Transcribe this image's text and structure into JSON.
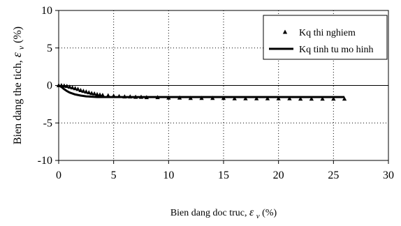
{
  "chart_data": {
    "type": "scatter",
    "xlabel_main": "Bien dang doc truc, ",
    "xlabel_symbol": "ε",
    "xlabel_sub": "v",
    "xlabel_unit": " (%)",
    "ylabel_main": "Bien dang the tich, ",
    "ylabel_symbol": "ε",
    "ylabel_sub": "v",
    "ylabel_unit": " (%)",
    "xlim": [
      0,
      30
    ],
    "ylim": [
      -10,
      10
    ],
    "xticks": [
      "0",
      "5",
      "10",
      "15",
      "20",
      "25",
      "30"
    ],
    "yticks": [
      "-10",
      "-5",
      "0",
      "5",
      "10"
    ],
    "grid": "dotted",
    "legend_position": "top-right",
    "series": [
      {
        "name": "Kq thi nghiem",
        "marker": "triangle",
        "x": [
          0.0,
          0.25,
          0.5,
          0.75,
          1.0,
          1.25,
          1.5,
          1.75,
          2.0,
          2.25,
          2.5,
          2.75,
          3.0,
          3.25,
          3.5,
          3.75,
          4.0,
          4.5,
          5.0,
          5.5,
          6.0,
          6.5,
          7.0,
          7.5,
          8.0,
          9.0,
          10.0,
          11.0,
          12.0,
          13.0,
          14.0,
          15.0,
          16.0,
          17.0,
          18.0,
          19.0,
          20.0,
          21.0,
          22.0,
          23.0,
          24.0,
          25.0,
          26.0
        ],
        "y": [
          0.0,
          0.0,
          -0.05,
          -0.1,
          -0.2,
          -0.3,
          -0.4,
          -0.5,
          -0.65,
          -0.75,
          -0.85,
          -0.95,
          -1.05,
          -1.1,
          -1.2,
          -1.25,
          -1.3,
          -1.35,
          -1.4,
          -1.45,
          -1.5,
          -1.5,
          -1.55,
          -1.55,
          -1.6,
          -1.6,
          -1.65,
          -1.65,
          -1.7,
          -1.7,
          -1.7,
          -1.7,
          -1.75,
          -1.75,
          -1.75,
          -1.75,
          -1.75,
          -1.75,
          -1.8,
          -1.8,
          -1.8,
          -1.8,
          -1.8
        ]
      },
      {
        "name": "Kq tinh tu mo hinh",
        "marker": "line",
        "x": [
          0.0,
          0.25,
          0.5,
          0.75,
          1.0,
          1.5,
          2.0,
          2.5,
          3.0,
          3.5,
          4.0,
          5.0,
          6.0,
          7.0,
          8.0,
          10.0,
          12.0,
          14.0,
          16.0,
          18.0,
          20.0,
          22.0,
          24.0,
          26.0
        ],
        "y": [
          0.0,
          -0.2,
          -0.5,
          -0.75,
          -0.95,
          -1.2,
          -1.35,
          -1.45,
          -1.5,
          -1.55,
          -1.55,
          -1.55,
          -1.55,
          -1.55,
          -1.55,
          -1.55,
          -1.55,
          -1.55,
          -1.55,
          -1.55,
          -1.55,
          -1.55,
          -1.55,
          -1.55
        ]
      }
    ]
  }
}
